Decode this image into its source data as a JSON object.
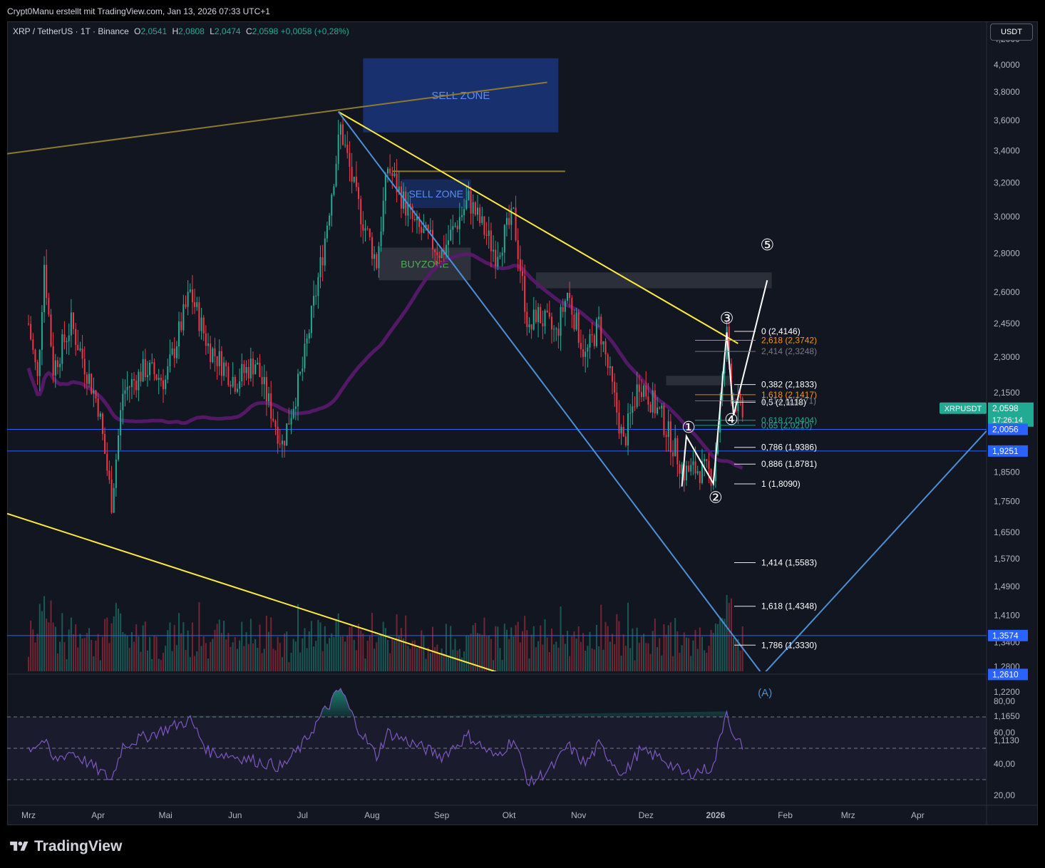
{
  "header": {
    "author_line": "Crypt0Manu erstellt mit TradingView.com, Jan 13, 2026 07:33 UTC+1"
  },
  "legend": {
    "symbol": "XRP / TetherUS · 1T · Binance",
    "o_label": "O",
    "o": "2,0541",
    "h_label": "H",
    "h": "2,0808",
    "l_label": "L",
    "l": "2,0474",
    "c_label": "C",
    "c": "2,0598",
    "change": "+0,0058 (+0,28%)"
  },
  "currency_button": "USDT",
  "brand": {
    "name": "TradingView",
    "logo_icon": "tradingview-logo-icon"
  },
  "colors": {
    "up": "#22ab94",
    "down": "#f23645",
    "yellow": "#ffeb3b",
    "blue_line": "#4a90d9",
    "ma": "#5b1a6e",
    "rsi": "#7e57c2",
    "hline": "#2962ff"
  },
  "chart_data": {
    "type": "candlestick",
    "title": "XRP / TetherUS · 1T · Binance",
    "y_scale": "log",
    "ylim": [
      1.1,
      4.3
    ],
    "y_ticks": [
      "4,2000",
      "4,0000",
      "3,8000",
      "3,6000",
      "3,4000",
      "3,2000",
      "3,0000",
      "2,8000",
      "2,6000",
      "2,4500",
      "2,3000",
      "2,1500",
      "2,0000",
      "1,8500",
      "1,7500",
      "1,6500",
      "1,5700",
      "1,4900",
      "1,4100",
      "1,3400",
      "1,2800",
      "1,2200",
      "1,1650",
      "1,1130"
    ],
    "x_labels": [
      "Mrz",
      "Apr",
      "Mai",
      "Jun",
      "Jul",
      "Aug",
      "Sep",
      "Okt",
      "Nov",
      "Dez",
      "2026",
      "Feb",
      "Mrz",
      "Apr"
    ],
    "price_anchors": [
      [
        "2025-03-01",
        2.45
      ],
      [
        "2025-03-05",
        2.2
      ],
      [
        "2025-03-08",
        2.75
      ],
      [
        "2025-03-12",
        2.25
      ],
      [
        "2025-03-20",
        2.45
      ],
      [
        "2025-04-01",
        2.1
      ],
      [
        "2025-04-07",
        1.75
      ],
      [
        "2025-04-12",
        2.15
      ],
      [
        "2025-04-22",
        2.25
      ],
      [
        "2025-05-01",
        2.2
      ],
      [
        "2025-05-12",
        2.6
      ],
      [
        "2025-05-20",
        2.35
      ],
      [
        "2025-06-01",
        2.2
      ],
      [
        "2025-06-10",
        2.28
      ],
      [
        "2025-06-22",
        1.95
      ],
      [
        "2025-07-01",
        2.25
      ],
      [
        "2025-07-10",
        2.8
      ],
      [
        "2025-07-18",
        3.55
      ],
      [
        "2025-07-25",
        3.1
      ],
      [
        "2025-08-03",
        2.75
      ],
      [
        "2025-08-08",
        3.3
      ],
      [
        "2025-08-20",
        2.95
      ],
      [
        "2025-09-01",
        2.8
      ],
      [
        "2025-09-13",
        3.1
      ],
      [
        "2025-09-25",
        2.8
      ],
      [
        "2025-10-03",
        3.0
      ],
      [
        "2025-10-10",
        2.4
      ],
      [
        "2025-10-13",
        2.5
      ],
      [
        "2025-10-22",
        2.4
      ],
      [
        "2025-10-27",
        2.6
      ],
      [
        "2025-11-04",
        2.3
      ],
      [
        "2025-11-10",
        2.45
      ],
      [
        "2025-11-21",
        1.95
      ],
      [
        "2025-11-28",
        2.2
      ],
      [
        "2025-12-08",
        2.05
      ],
      [
        "2025-12-18",
        1.85
      ],
      [
        "2025-12-24",
        1.86
      ],
      [
        "2025-12-31",
        1.84
      ],
      [
        "2026-01-06",
        2.4
      ],
      [
        "2026-01-08",
        2.15
      ],
      [
        "2026-01-13",
        2.06
      ]
    ],
    "rsi": {
      "levels": [
        70,
        50,
        30
      ],
      "y_ticks": [
        "80,00",
        "60,00",
        "40,00",
        "20,00"
      ],
      "anchors": [
        [
          "2025-03-01",
          50
        ],
        [
          "2025-03-08",
          55
        ],
        [
          "2025-03-12",
          42
        ],
        [
          "2025-03-20",
          48
        ],
        [
          "2025-04-07",
          30
        ],
        [
          "2025-04-12",
          52
        ],
        [
          "2025-05-12",
          68
        ],
        [
          "2025-05-20",
          48
        ],
        [
          "2025-06-01",
          45
        ],
        [
          "2025-06-22",
          38
        ],
        [
          "2025-07-01",
          52
        ],
        [
          "2025-07-10",
          72
        ],
        [
          "2025-07-18",
          88
        ],
        [
          "2025-07-25",
          65
        ],
        [
          "2025-08-03",
          45
        ],
        [
          "2025-08-08",
          60
        ],
        [
          "2025-09-01",
          45
        ],
        [
          "2025-09-13",
          58
        ],
        [
          "2025-09-25",
          44
        ],
        [
          "2025-10-03",
          56
        ],
        [
          "2025-10-10",
          27
        ],
        [
          "2025-10-22",
          40
        ],
        [
          "2025-10-27",
          52
        ],
        [
          "2025-11-04",
          40
        ],
        [
          "2025-11-10",
          52
        ],
        [
          "2025-11-21",
          33
        ],
        [
          "2025-11-28",
          48
        ],
        [
          "2025-12-08",
          44
        ],
        [
          "2025-12-18",
          33
        ],
        [
          "2025-12-31",
          38
        ],
        [
          "2026-01-06",
          76
        ],
        [
          "2026-01-09",
          55
        ],
        [
          "2026-01-13",
          52
        ]
      ]
    },
    "price_labels": [
      {
        "text": "XRPUSDT",
        "value": "2,0598",
        "sub": "17:26:14",
        "color": "#22ab94"
      },
      {
        "value": "2,0056",
        "color": "#2962ff"
      },
      {
        "value": "1,9251",
        "color": "#2962ff"
      },
      {
        "value": "1,3574",
        "color": "#2962ff"
      },
      {
        "value": "1,2610",
        "color": "#2962ff"
      }
    ],
    "horizontal_lines": [
      2.0056,
      1.9251,
      1.3574,
      1.261
    ],
    "zones": [
      {
        "label": "SELL ZONE",
        "top": 4.05,
        "bottom": 3.52,
        "from": "2025-07-28",
        "to": "2025-10-23"
      },
      {
        "label": "SELL ZONE",
        "top": 3.22,
        "bottom": 3.05,
        "from": "2025-08-14",
        "to": "2025-09-14"
      },
      {
        "label": "BUYZONE",
        "top": 2.83,
        "bottom": 2.66,
        "from": "2025-08-04",
        "to": "2025-09-14"
      }
    ],
    "fib_levels": [
      {
        "label": "0 (2,4146)",
        "color": "#ffffff"
      },
      {
        "label": "2,618 (2,3742)",
        "color": "#f7931a"
      },
      {
        "label": "2,414 (2,3248)",
        "color": "#787b86"
      },
      {
        "label": "0,382 (2,1833)",
        "color": "#ffffff"
      },
      {
        "label": "1,618 (2,1417)",
        "color": "#f7931a"
      },
      {
        "label": "0,5 (2,1118)",
        "color": "#ffffff"
      },
      {
        "label": "1,414 (2,1171)",
        "color": "#787b86"
      },
      {
        "label": "0,618 (2,0404)",
        "color": "#22ab94"
      },
      {
        "label": "0,65 (2,0210)",
        "color": "#22ab94"
      },
      {
        "label": "0,786 (1,9386)",
        "color": "#ffffff"
      },
      {
        "label": "0,886 (1,8781)",
        "color": "#ffffff"
      },
      {
        "label": "1 (1,8090)",
        "color": "#ffffff"
      },
      {
        "label": "1,414 (1,5583)",
        "color": "#ffffff"
      },
      {
        "label": "1,618 (1,4348)",
        "color": "#ffffff"
      },
      {
        "label": "1,786 (1,3330)",
        "color": "#ffffff"
      }
    ],
    "wave_labels": [
      "①",
      "②",
      "③",
      "④",
      "⑤",
      "(A)"
    ]
  }
}
